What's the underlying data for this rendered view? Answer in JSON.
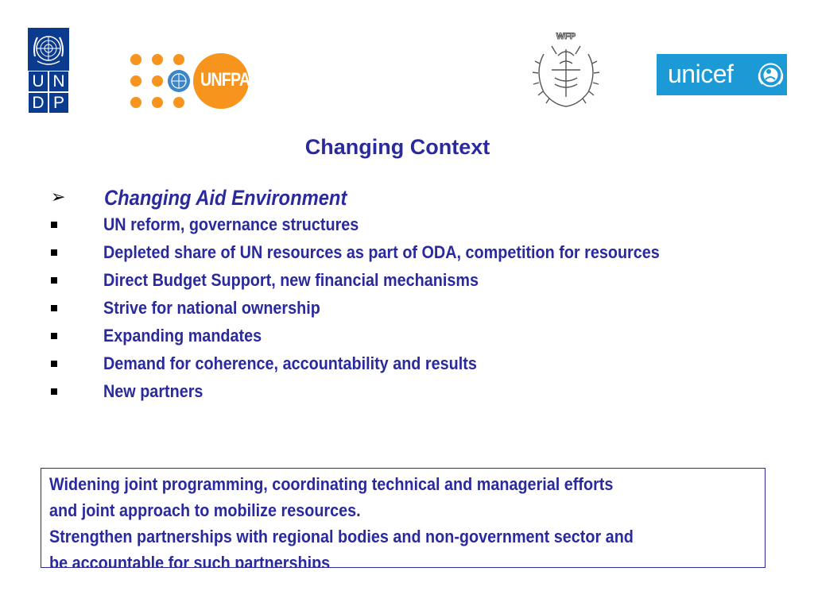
{
  "logos": {
    "undp": {
      "letters": [
        "U",
        "N",
        "D",
        "P"
      ],
      "color": "#0b3b8f"
    },
    "unfpa": {
      "label": "UNFPA",
      "color": "#f7941d"
    },
    "wfp": {
      "label": "WFP"
    },
    "unicef": {
      "label": "unicef",
      "color": "#1c9ad6"
    }
  },
  "title": "Changing Context",
  "heading": "Changing Aid Environment",
  "bullets": [
    "UN reform, governance structures",
    "Depleted share of UN resources as part of ODA, competition for resources",
    "Direct Budget Support, new financial mechanisms",
    "Strive for national ownership",
    "Expanding mandates",
    "Demand for coherence, accountability and results",
    "New partners"
  ],
  "callout": {
    "lines": [
      "Widening joint programming, coordinating technical and managerial efforts",
      "and joint approach to mobilize resources.",
      "Strengthen partnerships with regional bodies and non-government sector and",
      "be accountable for such partnerships"
    ]
  },
  "colors": {
    "text": "#2a2a9e",
    "bullet": "#000000"
  }
}
